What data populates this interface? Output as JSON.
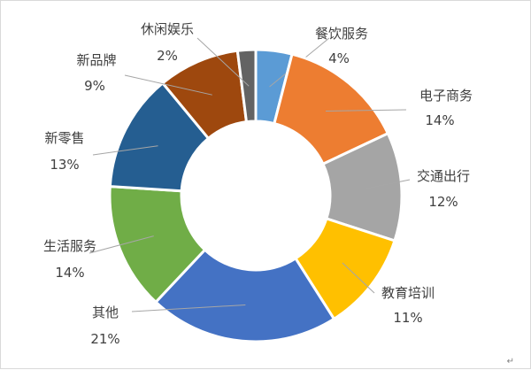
{
  "chart_data": {
    "type": "pie",
    "variant": "donut",
    "start_angle_deg": 0,
    "slices": [
      {
        "label": "餐饮服务",
        "value": 4,
        "pct_label": "4%",
        "color": "#5B9BD5"
      },
      {
        "label": "电子商务",
        "value": 14,
        "pct_label": "14%",
        "color": "#ED7D31"
      },
      {
        "label": "交通出行",
        "value": 12,
        "pct_label": "12%",
        "color": "#A5A5A5"
      },
      {
        "label": "教育培训",
        "value": 11,
        "pct_label": "11%",
        "color": "#FFC000"
      },
      {
        "label": "其他",
        "value": 21,
        "pct_label": "21%",
        "color": "#4472C4"
      },
      {
        "label": "生活服务",
        "value": 14,
        "pct_label": "14%",
        "color": "#70AD47"
      },
      {
        "label": "新零售",
        "value": 13,
        "pct_label": "13%",
        "color": "#255E91"
      },
      {
        "label": "新品牌",
        "value": 9,
        "pct_label": "9%",
        "color": "#9E480E"
      },
      {
        "label": "休闲娱乐",
        "value": 2,
        "pct_label": "2%",
        "color": "#636363"
      }
    ],
    "legend": "none",
    "leader_line_color": "#a6a6a6"
  },
  "footer_mark": "↵"
}
